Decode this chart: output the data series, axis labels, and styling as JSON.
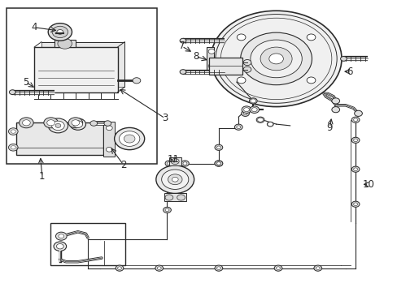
{
  "bg_color": "#ffffff",
  "lc": "#2a2a2a",
  "fig_w": 4.89,
  "fig_h": 3.6,
  "dpi": 100,
  "labels": {
    "1": [
      0.105,
      0.415,
      0.13,
      0.49
    ],
    "2": [
      0.305,
      0.415,
      0.27,
      0.445
    ],
    "3": [
      0.415,
      0.595,
      0.31,
      0.65
    ],
    "4": [
      0.08,
      0.895,
      0.155,
      0.885
    ],
    "5": [
      0.065,
      0.715,
      0.1,
      0.695
    ],
    "6": [
      0.875,
      0.755,
      0.845,
      0.755
    ],
    "7": [
      0.465,
      0.84,
      0.495,
      0.82
    ],
    "8": [
      0.49,
      0.805,
      0.525,
      0.79
    ],
    "9": [
      0.83,
      0.565,
      0.83,
      0.605
    ],
    "10": [
      0.925,
      0.365,
      0.905,
      0.365
    ],
    "11": [
      0.44,
      0.44,
      0.44,
      0.465
    ]
  }
}
